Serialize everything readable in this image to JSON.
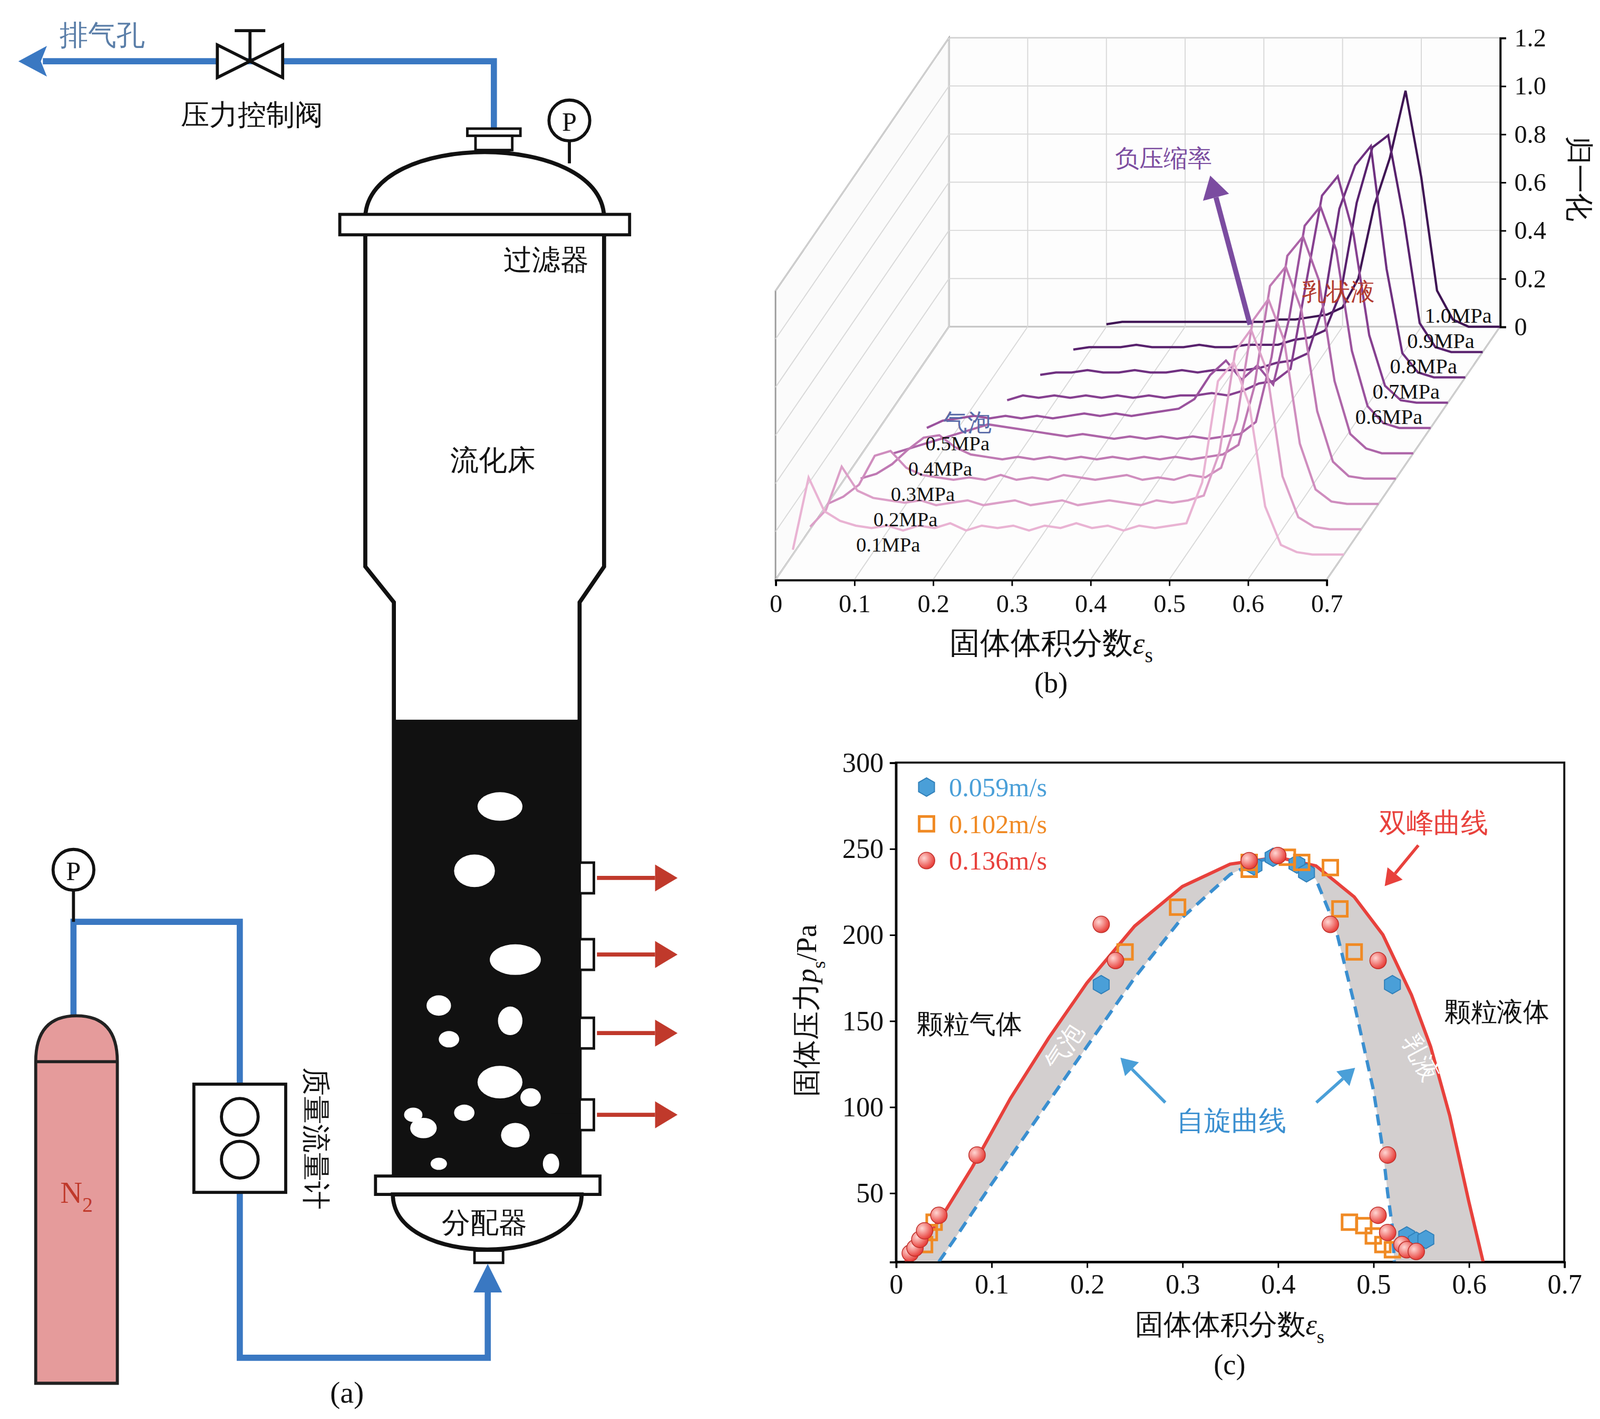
{
  "diagram": {
    "panel_label": "(a)",
    "exhaust": "排气孔",
    "valve": "压力控制阀",
    "gauge": "P",
    "filter": "过滤器",
    "bed": "流化床",
    "distributor": "分配器",
    "flowmeter": "质量流量计",
    "gas": {
      "pre": "N",
      "sub": "2"
    }
  },
  "chart_data": [
    {
      "type": "waterfall",
      "panel_label": "(b)",
      "xlabel": {
        "pre": "固体体积分数",
        "var": "ε",
        "sub": "s"
      },
      "ylabel": "归一化",
      "xlim": [
        0,
        0.7
      ],
      "xticks": [
        0,
        0.1,
        0.2,
        0.3,
        0.4,
        0.5,
        0.6,
        0.7
      ],
      "ylim": [
        0,
        1.2
      ],
      "yticks": [
        0,
        0.2,
        0.4,
        0.6,
        0.8,
        {
          "value": 1,
          "label": "1.0"
        },
        1.2
      ],
      "grid": true,
      "x": [
        0,
        0.02,
        0.04,
        0.06,
        0.08,
        0.1,
        0.12,
        0.14,
        0.16,
        0.18,
        0.2,
        0.22,
        0.24,
        0.26,
        0.28,
        0.3,
        0.32,
        0.34,
        0.36,
        0.38,
        0.4,
        0.42,
        0.44,
        0.46,
        0.48,
        0.5,
        0.52,
        0.54,
        0.56,
        0.58,
        0.6,
        0.62,
        0.64,
        0.66,
        0.68,
        0.7
      ],
      "series": [
        {
          "name": "0.1MPa",
          "color": "#e9b3d3",
          "values": [
            0.02,
            0.32,
            0.18,
            0.14,
            0.12,
            0.11,
            0.12,
            0.1,
            0.12,
            0.11,
            0.13,
            0.1,
            0.12,
            0.11,
            0.12,
            0.1,
            0.12,
            0.11,
            0.13,
            0.11,
            0.12,
            0.1,
            0.12,
            0.11,
            0.12,
            0.13,
            0.3,
            0.72,
            0.8,
            0.62,
            0.2,
            0.04,
            0.01,
            0,
            0,
            0
          ]
        },
        {
          "name": "0.2MPa",
          "color": "#dca0c8",
          "values": [
            0.01,
            0.08,
            0.26,
            0.16,
            0.13,
            0.12,
            0.11,
            0.12,
            0.1,
            0.11,
            0.12,
            0.1,
            0.11,
            0.12,
            0.1,
            0.11,
            0.12,
            0.1,
            0.11,
            0.12,
            0.11,
            0.1,
            0.12,
            0.11,
            0.12,
            0.14,
            0.32,
            0.74,
            0.83,
            0.66,
            0.22,
            0.05,
            0.01,
            0,
            0,
            0
          ]
        },
        {
          "name": "0.3MPa",
          "color": "#cf8dbe",
          "values": [
            0,
            0.03,
            0.08,
            0.2,
            0.22,
            0.15,
            0.12,
            0.11,
            0.1,
            0.11,
            0.1,
            0.12,
            0.1,
            0.11,
            0.1,
            0.12,
            0.11,
            0.1,
            0.11,
            0.12,
            0.1,
            0.11,
            0.1,
            0.12,
            0.11,
            0.15,
            0.35,
            0.76,
            0.85,
            0.68,
            0.25,
            0.06,
            0.01,
            0,
            0,
            0
          ]
        },
        {
          "name": "0.4MPa",
          "color": "#bf79b3",
          "values": [
            null,
            0,
            0.02,
            0.06,
            0.12,
            0.17,
            0.18,
            0.13,
            0.1,
            0.09,
            0.08,
            0.09,
            0.08,
            0.09,
            0.08,
            0.09,
            0.08,
            0.09,
            0.08,
            0.09,
            0.08,
            0.09,
            0.08,
            0.09,
            0.1,
            0.14,
            0.38,
            0.8,
            0.88,
            0.7,
            0.28,
            0.07,
            0.01,
            0,
            0,
            0
          ]
        },
        {
          "name": "0.5MPa",
          "color": "#ad65a8",
          "values": [
            null,
            null,
            0,
            0.02,
            0.04,
            0.06,
            0.08,
            0.1,
            0.12,
            0.11,
            0.1,
            0.09,
            0.08,
            0.07,
            0.08,
            0.07,
            0.06,
            0.07,
            0.06,
            0.07,
            0.06,
            0.07,
            0.06,
            0.07,
            0.08,
            0.13,
            0.4,
            0.82,
            0.9,
            0.72,
            0.3,
            0.08,
            0.02,
            0,
            0,
            0
          ]
        },
        {
          "name": "0.6MPa",
          "color": "#9a529d",
          "values": [
            null,
            null,
            null,
            0,
            0.03,
            0.04,
            0.05,
            0.04,
            0.05,
            0.04,
            0.05,
            0.04,
            0.05,
            0.06,
            0.05,
            0.06,
            0.05,
            0.06,
            0.07,
            0.08,
            0.12,
            0.22,
            0.28,
            0.2,
            0.26,
            0.18,
            0.45,
            0.84,
            0.92,
            0.74,
            0.32,
            0.09,
            0.02,
            0,
            0,
            0
          ]
        },
        {
          "name": "0.7MPa",
          "color": "#864090",
          "values": [
            null,
            null,
            null,
            null,
            null,
            null,
            null,
            0.01,
            0.03,
            0.02,
            0.03,
            0.02,
            0.03,
            0.02,
            0.03,
            0.02,
            0.03,
            0.02,
            0.03,
            0.03,
            0.04,
            0.03,
            0.05,
            0.08,
            0.09,
            0.14,
            0.5,
            0.86,
            0.94,
            0.7,
            0.28,
            0.07,
            0.01,
            0,
            0,
            0
          ]
        },
        {
          "name": "0.8MPa",
          "color": "#6f3080",
          "values": [
            null,
            null,
            null,
            null,
            null,
            null,
            null,
            null,
            0.01,
            0.02,
            0.02,
            0.03,
            0.02,
            0.02,
            0.03,
            0.02,
            0.02,
            0.03,
            0.02,
            0.03,
            0.03,
            0.03,
            0.04,
            0.06,
            0.07,
            0.1,
            0.3,
            0.7,
            0.88,
            0.96,
            0.45,
            0.1,
            0.02,
            0,
            0,
            0
          ]
        },
        {
          "name": "0.9MPa",
          "color": "#58216d",
          "values": [
            null,
            null,
            null,
            null,
            null,
            null,
            null,
            null,
            null,
            0.01,
            0.02,
            0.02,
            0.02,
            0.03,
            0.02,
            0.02,
            0.02,
            0.03,
            0.02,
            0.02,
            0.03,
            0.03,
            0.03,
            0.05,
            0.06,
            0.09,
            0.25,
            0.62,
            0.85,
            0.9,
            0.55,
            0.12,
            0.02,
            0,
            0,
            0
          ]
        },
        {
          "name": "1.0MPa",
          "color": "#3f1454",
          "values": [
            null,
            null,
            null,
            null,
            null,
            null,
            null,
            null,
            null,
            null,
            0.01,
            0.02,
            0.02,
            0.02,
            0.02,
            0.02,
            0.02,
            0.02,
            0.02,
            0.02,
            0.02,
            0.03,
            0.03,
            0.04,
            0.05,
            0.08,
            0.2,
            0.5,
            0.7,
            0.98,
            0.62,
            0.15,
            0.03,
            0,
            0,
            0
          ]
        }
      ],
      "annotations": [
        {
          "text": "负压缩率",
          "color": "#7b4ca0"
        },
        {
          "text": "气泡",
          "color": "#5a6ba8"
        },
        {
          "text": "乳状液",
          "color": "#b23a2e"
        }
      ]
    },
    {
      "type": "scatter",
      "panel_label": "(c)",
      "xlabel": {
        "pre": "固体体积分数",
        "var": "ε",
        "sub": "s"
      },
      "ylabel": {
        "pre": "固体压力",
        "var": "p",
        "sub": "s",
        "post": "/Pa"
      },
      "xlim": [
        0,
        0.7
      ],
      "xticks": [
        0,
        0.1,
        0.2,
        0.3,
        0.4,
        0.5,
        0.6,
        0.7
      ],
      "ylim": [
        10,
        300
      ],
      "yticks": [
        50,
        100,
        150,
        200,
        250,
        300
      ],
      "grid": false,
      "legend": "upper left",
      "series": [
        {
          "name": "0.059m/s",
          "type": "scatter",
          "marker": "hexagon",
          "color": "#4a9fd8",
          "x": [
            0.215,
            0.375,
            0.395,
            0.42,
            0.43,
            0.52,
            0.535,
            0.545,
            0.555
          ],
          "values": [
            171,
            240,
            245,
            241,
            236,
            171,
            25,
            22,
            23
          ]
        },
        {
          "name": "0.102m/s",
          "type": "scatter",
          "marker": "square",
          "color": "#f08a24",
          "x": [
            0.03,
            0.035,
            0.04,
            0.24,
            0.295,
            0.37,
            0.37,
            0.41,
            0.425,
            0.455,
            0.465,
            0.48,
            0.475,
            0.49,
            0.5,
            0.51,
            0.52
          ],
          "values": [
            20,
            27,
            33,
            190,
            216,
            242,
            238,
            245,
            242,
            239,
            215,
            190,
            33,
            31,
            25,
            20,
            17
          ]
        },
        {
          "name": "0.136m/s",
          "type": "scatter",
          "marker": "circle",
          "color": "#e8413c",
          "x": [
            0.015,
            0.02,
            0.025,
            0.03,
            0.045,
            0.085,
            0.215,
            0.23,
            0.37,
            0.4,
            0.455,
            0.505,
            0.515,
            0.505,
            0.515,
            0.53,
            0.535,
            0.545
          ],
          "values": [
            15,
            18,
            23,
            28,
            37,
            72,
            206,
            185,
            243,
            246,
            206,
            185,
            72,
            37,
            27,
            20,
            17,
            16
          ]
        },
        {
          "name": "双峰曲线",
          "type": "line",
          "line_style": "solid",
          "color": "#e8413c",
          "x": [
            0.01,
            0.03,
            0.05,
            0.08,
            0.12,
            0.16,
            0.2,
            0.25,
            0.3,
            0.35,
            0.4,
            0.44,
            0.48,
            0.51,
            0.54,
            0.56,
            0.58,
            0.6,
            0.615
          ],
          "values": [
            10,
            22,
            38,
            65,
            105,
            140,
            172,
            205,
            228,
            241,
            245,
            240,
            222,
            200,
            165,
            135,
            95,
            45,
            10
          ]
        },
        {
          "name": "自旋曲线",
          "type": "line",
          "line_style": "dashed",
          "color": "#3a8fd0",
          "x": [
            0.045,
            0.06,
            0.1,
            0.15,
            0.2,
            0.25,
            0.3,
            0.35,
            0.38,
            0.4,
            0.42,
            0.44,
            0.46,
            0.48,
            0.5,
            0.51,
            0.515,
            0.52,
            0.522
          ],
          "values": [
            10,
            22,
            55,
            95,
            135,
            175,
            210,
            235,
            243,
            245,
            243,
            232,
            205,
            160,
            110,
            75,
            50,
            30,
            10
          ]
        }
      ],
      "annotations": [
        {
          "text": "颗粒气体",
          "color": "#111111"
        },
        {
          "text": "颗粒液体",
          "color": "#111111"
        },
        {
          "text": "气泡",
          "color": "#ffffff"
        },
        {
          "text": "乳液",
          "color": "#ffffff"
        }
      ]
    }
  ]
}
